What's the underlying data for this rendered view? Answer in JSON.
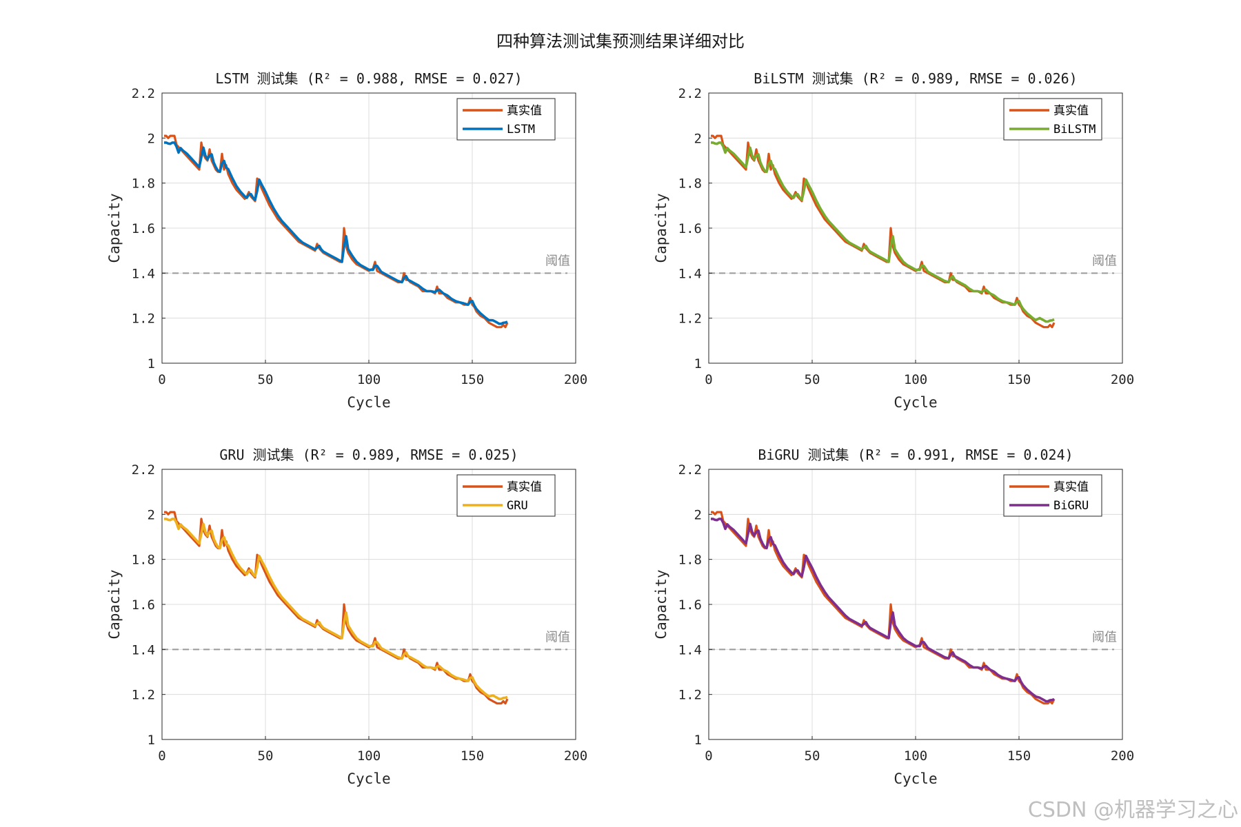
{
  "figure_title": "四种算法测试集预测结果详细对比",
  "watermark": "CSDN @机器学习之心",
  "chart_data": [
    {
      "type": "line",
      "title": "LSTM 测试集 (R² = 0.988, RMSE = 0.027)",
      "xlabel": "Cycle",
      "ylabel": "Capacity",
      "xlim": [
        0,
        200
      ],
      "ylim": [
        1,
        2.2
      ],
      "xticks": [
        "0",
        "50",
        "100",
        "150",
        "200"
      ],
      "yticks": [
        "1",
        "1.2",
        "1.4",
        "1.6",
        "1.8",
        "2",
        "2.2"
      ],
      "grid": true,
      "legend_position": "top-right",
      "threshold": {
        "value": 1.4,
        "label": "阈值",
        "color": "#999999"
      },
      "series": [
        {
          "name": "真实值",
          "color": "#d95319",
          "role": "true"
        },
        {
          "name": "LSTM",
          "color": "#0072bd",
          "role": "pred",
          "offset": [
            0.03,
            -0.015
          ]
        }
      ]
    },
    {
      "type": "line",
      "title": "BiLSTM 测试集 (R² = 0.989, RMSE = 0.026)",
      "xlabel": "Cycle",
      "ylabel": "Capacity",
      "xlim": [
        0,
        200
      ],
      "ylim": [
        1,
        2.2
      ],
      "xticks": [
        "0",
        "50",
        "100",
        "150",
        "200"
      ],
      "yticks": [
        "1",
        "1.2",
        "1.4",
        "1.6",
        "1.8",
        "2",
        "2.2"
      ],
      "grid": true,
      "legend_position": "top-right",
      "threshold": {
        "value": 1.4,
        "label": "阈值",
        "color": "#999999"
      },
      "series": [
        {
          "name": "真实值",
          "color": "#d95319",
          "role": "true"
        },
        {
          "name": "BiLSTM",
          "color": "#77ac30",
          "role": "pred",
          "offset": [
            0.02,
            -0.025
          ]
        }
      ]
    },
    {
      "type": "line",
      "title": "GRU 测试集 (R² = 0.989, RMSE = 0.025)",
      "xlabel": "Cycle",
      "ylabel": "Capacity",
      "xlim": [
        0,
        200
      ],
      "ylim": [
        1,
        2.2
      ],
      "xticks": [
        "0",
        "50",
        "100",
        "150",
        "200"
      ],
      "yticks": [
        "1",
        "1.2",
        "1.4",
        "1.6",
        "1.8",
        "2",
        "2.2"
      ],
      "grid": true,
      "legend_position": "top-right",
      "threshold": {
        "value": 1.4,
        "label": "阈值",
        "color": "#999999"
      },
      "series": [
        {
          "name": "真实值",
          "color": "#d95319",
          "role": "true"
        },
        {
          "name": "GRU",
          "color": "#edb120",
          "role": "pred",
          "offset": [
            0.025,
            -0.02
          ]
        }
      ]
    },
    {
      "type": "line",
      "title": "BiGRU 测试集 (R² = 0.991, RMSE = 0.024)",
      "xlabel": "Cycle",
      "ylabel": "Capacity",
      "xlim": [
        0,
        200
      ],
      "ylim": [
        1,
        2.2
      ],
      "xticks": [
        "0",
        "50",
        "100",
        "150",
        "200"
      ],
      "yticks": [
        "1",
        "1.2",
        "1.4",
        "1.6",
        "1.8",
        "2",
        "2.2"
      ],
      "grid": true,
      "legend_position": "top-right",
      "threshold": {
        "value": 1.4,
        "label": "阈值",
        "color": "#999999"
      },
      "series": [
        {
          "name": "真实值",
          "color": "#d95319",
          "role": "true"
        },
        {
          "name": "BiGRU",
          "color": "#7e2f8e",
          "role": "pred",
          "offset": [
            0.015,
            -0.01
          ]
        }
      ]
    }
  ],
  "true_curve": {
    "cycle": [
      1,
      2,
      3,
      4,
      5,
      6,
      7,
      8,
      9,
      10,
      12,
      14,
      16,
      18,
      19,
      20,
      21,
      22,
      23,
      24,
      25,
      26,
      27,
      28,
      29,
      30,
      31,
      32,
      34,
      36,
      38,
      40,
      41,
      42,
      43,
      44,
      45,
      46,
      47,
      48,
      50,
      52,
      54,
      56,
      58,
      60,
      62,
      64,
      66,
      68,
      70,
      72,
      74,
      75,
      76,
      77,
      78,
      80,
      82,
      84,
      86,
      87,
      88,
      89,
      90,
      92,
      94,
      96,
      98,
      100,
      102,
      103,
      104,
      106,
      108,
      110,
      112,
      114,
      116,
      117,
      118,
      119,
      120,
      122,
      124,
      126,
      128,
      130,
      132,
      133,
      134,
      136,
      138,
      140,
      142,
      144,
      146,
      148,
      149,
      150,
      151,
      152,
      154,
      156,
      158,
      160,
      162,
      163,
      164,
      165,
      166,
      167
    ],
    "capacity": [
      2.01,
      2.01,
      2.0,
      2.01,
      2.01,
      2.01,
      1.97,
      1.96,
      1.95,
      1.94,
      1.92,
      1.9,
      1.88,
      1.86,
      1.98,
      1.93,
      1.91,
      1.9,
      1.95,
      1.9,
      1.88,
      1.86,
      1.85,
      1.85,
      1.93,
      1.86,
      1.88,
      1.84,
      1.8,
      1.77,
      1.75,
      1.73,
      1.74,
      1.76,
      1.74,
      1.73,
      1.72,
      1.82,
      1.81,
      1.78,
      1.74,
      1.7,
      1.67,
      1.64,
      1.62,
      1.6,
      1.58,
      1.56,
      1.54,
      1.53,
      1.52,
      1.51,
      1.5,
      1.53,
      1.51,
      1.5,
      1.49,
      1.48,
      1.47,
      1.46,
      1.45,
      1.45,
      1.6,
      1.52,
      1.49,
      1.46,
      1.44,
      1.43,
      1.42,
      1.41,
      1.42,
      1.45,
      1.41,
      1.4,
      1.39,
      1.38,
      1.37,
      1.36,
      1.36,
      1.4,
      1.37,
      1.37,
      1.36,
      1.35,
      1.34,
      1.32,
      1.32,
      1.32,
      1.31,
      1.34,
      1.31,
      1.31,
      1.29,
      1.28,
      1.27,
      1.27,
      1.26,
      1.26,
      1.29,
      1.26,
      1.25,
      1.23,
      1.21,
      1.2,
      1.18,
      1.17,
      1.16,
      1.16,
      1.16,
      1.17,
      1.16,
      1.18
    ]
  }
}
